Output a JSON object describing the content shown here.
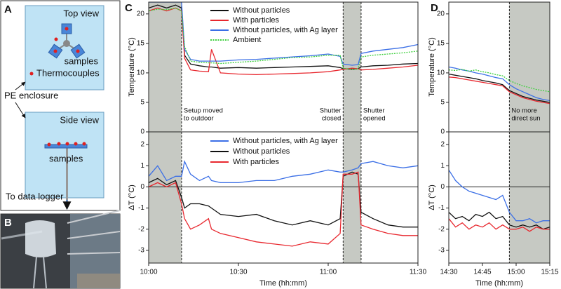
{
  "panel_labels": [
    "A",
    "B",
    "C",
    "D"
  ],
  "diagram": {
    "top_view": "Top view",
    "top_samples": "samples",
    "thermocouples": "Thermocouples",
    "enclosure": "PE enclosure",
    "side_view": "Side view",
    "side_samples": "samples",
    "logger": "To data logger"
  },
  "chart_data": [
    {
      "type": "line",
      "ylabel": "Temperature (°C)",
      "x": [
        "10:00",
        "10:03",
        "10:06",
        "10:09",
        "10:11",
        "10:12",
        "10:14",
        "10:17",
        "10:20",
        "10:21",
        "10:24",
        "10:30",
        "10:36",
        "10:42",
        "10:48",
        "10:54",
        "11:00",
        "11:04",
        "11:05",
        "11:08",
        "11:10",
        "11:11",
        "11:15",
        "11:20",
        "11:25",
        "11:30"
      ],
      "xlim": [
        "10:00",
        "11:30"
      ],
      "ylim": [
        0,
        22
      ],
      "yticks": [
        0,
        5,
        10,
        15,
        20
      ],
      "legend": "top",
      "shaded": [
        {
          "from": "10:00",
          "to": "10:11"
        },
        {
          "from": "11:05",
          "to": "11:11"
        }
      ],
      "annotations": [
        {
          "x": "10:11",
          "side": "right",
          "text": [
            "Setup moved",
            "to outdoor"
          ]
        },
        {
          "x": "11:05",
          "side": "left",
          "text": [
            "Shutter",
            "closed"
          ]
        },
        {
          "x": "11:11",
          "side": "right",
          "text": [
            "Shutter",
            "opened"
          ]
        }
      ],
      "series": [
        {
          "name": "Without particles",
          "color": "#111111",
          "values": [
            21,
            21.5,
            21,
            21.5,
            21,
            13,
            11.5,
            11.2,
            11,
            11,
            10.8,
            10.9,
            10.8,
            10.9,
            11,
            11.1,
            11.2,
            10.9,
            10.7,
            10.6,
            10.7,
            11,
            11.2,
            11.3,
            11.5,
            11.6
          ]
        },
        {
          "name": "With particles",
          "color": "#e8282f",
          "values": [
            20.5,
            21,
            20.5,
            21,
            20.5,
            12.5,
            10.5,
            10.3,
            10.2,
            14,
            10,
            9.8,
            9.7,
            9.8,
            9.9,
            10,
            10.2,
            10.5,
            10.6,
            10.8,
            10.7,
            10.5,
            10.6,
            10.8,
            11,
            11.3
          ]
        },
        {
          "name": "Without particles, with Ag layer",
          "color": "#3b6fe6",
          "values": [
            22,
            22,
            22,
            22,
            22,
            14,
            12.3,
            12,
            12,
            12,
            12,
            12.2,
            12.3,
            12.5,
            12.7,
            12.9,
            13.2,
            12.8,
            11.5,
            11.3,
            11.4,
            13.3,
            13.7,
            14,
            14.3,
            14.8
          ]
        },
        {
          "name": "Ambient",
          "color": "#3fd03f",
          "style": "dotted",
          "values": [
            20.5,
            20.8,
            20.7,
            21,
            20.5,
            14.5,
            12,
            11.8,
            11.7,
            11.7,
            11.6,
            11.8,
            12,
            12.3,
            12.6,
            12.7,
            13,
            13,
            10.8,
            10.6,
            10.7,
            12.7,
            13,
            13.2,
            13.4,
            13.7
          ]
        }
      ]
    },
    {
      "type": "line",
      "ylabel": "ΔT (°C)",
      "xlabel": "Time (hh:mm)",
      "x": [
        "10:00",
        "10:03",
        "10:06",
        "10:09",
        "10:11",
        "10:12",
        "10:14",
        "10:17",
        "10:20",
        "10:21",
        "10:24",
        "10:30",
        "10:36",
        "10:42",
        "10:48",
        "10:54",
        "11:00",
        "11:04",
        "11:05",
        "11:08",
        "11:10",
        "11:11",
        "11:15",
        "11:20",
        "11:25",
        "11:30"
      ],
      "xlim": [
        "10:00",
        "11:30"
      ],
      "xticks": [
        "10:00",
        "10:30",
        "11:00",
        "11:30"
      ],
      "ylim": [
        -3.6,
        2.6
      ],
      "yticks": [
        -3,
        -2,
        -1,
        0,
        1,
        2
      ],
      "zero_line": true,
      "legend": "top",
      "shaded": [
        {
          "from": "10:00",
          "to": "10:11"
        },
        {
          "from": "11:05",
          "to": "11:11"
        }
      ],
      "series": [
        {
          "name": "Without particles, with Ag layer",
          "color": "#3b6fe6",
          "values": [
            0.5,
            1,
            0.3,
            0.5,
            0.5,
            1.2,
            0.6,
            0.3,
            0.5,
            0.3,
            0.2,
            0.2,
            0.3,
            0.3,
            0.5,
            0.6,
            0.8,
            0.7,
            0.7,
            0.8,
            0.9,
            1.1,
            1.2,
            1,
            0.9,
            1
          ]
        },
        {
          "name": "Without particles",
          "color": "#111111",
          "values": [
            0.2,
            0.4,
            0.1,
            0.3,
            -0.5,
            -1,
            -0.8,
            -0.8,
            -0.9,
            -1,
            -1.3,
            -1.4,
            -1.3,
            -1.6,
            -1.8,
            -1.6,
            -1.8,
            -1.5,
            0.5,
            0.7,
            0.6,
            -1.2,
            -1.5,
            -1.8,
            -1.9,
            -1.9
          ]
        },
        {
          "name": "With particles",
          "color": "#e8282f",
          "values": [
            0,
            0.2,
            0,
            0.2,
            -0.8,
            -1.5,
            -2,
            -1.8,
            -1.5,
            -2,
            -2.2,
            -2.4,
            -2.6,
            -2.7,
            -2.8,
            -2.6,
            -2.7,
            -2.2,
            0.6,
            0.6,
            0.7,
            -1.8,
            -2,
            -2.2,
            -2.3,
            -2.3
          ]
        }
      ]
    },
    {
      "type": "line",
      "ylabel": "Temperature (°C)",
      "x": [
        "14:30",
        "14:33",
        "14:36",
        "14:39",
        "14:42",
        "14:45",
        "14:48",
        "14:51",
        "14:54",
        "14:57",
        "15:00",
        "15:03",
        "15:06",
        "15:09",
        "15:12",
        "15:15"
      ],
      "xlim": [
        "14:30",
        "15:15"
      ],
      "ylim": [
        0,
        22
      ],
      "yticks": [
        0,
        5,
        10,
        15,
        20
      ],
      "shaded": [
        {
          "from": "14:57",
          "to": "15:15"
        }
      ],
      "annotations": [
        {
          "x": "14:57",
          "side": "right",
          "text": [
            "No more",
            "direct sun"
          ]
        }
      ],
      "series": [
        {
          "name": "Without particles",
          "color": "#111111",
          "values": [
            9.8,
            9.6,
            9.4,
            9.2,
            9,
            8.7,
            8.5,
            8.3,
            8,
            7,
            6.5,
            6,
            5.7,
            5.4,
            5.2,
            5
          ]
        },
        {
          "name": "With particles",
          "color": "#e8282f",
          "values": [
            9.3,
            9.2,
            9,
            8.8,
            8.6,
            8.4,
            8.2,
            8,
            7.8,
            6.8,
            6.3,
            5.8,
            5.5,
            5.2,
            5,
            4.8
          ]
        },
        {
          "name": "Without particles, with Ag layer",
          "color": "#3b6fe6",
          "values": [
            11,
            10.8,
            10.5,
            10.3,
            10,
            9.8,
            9.5,
            9.2,
            9,
            8,
            7.3,
            6.8,
            6.3,
            5.8,
            5.5,
            5.3
          ]
        },
        {
          "name": "Ambient",
          "color": "#3fd03f",
          "style": "dotted",
          "values": [
            10.5,
            10.4,
            10.6,
            10.3,
            10.5,
            10.2,
            10,
            9.7,
            9.5,
            8.7,
            8.2,
            7.8,
            7.5,
            7.2,
            7,
            6.8
          ]
        }
      ]
    },
    {
      "type": "line",
      "ylabel": "ΔT (°C)",
      "xlabel": "Time (hh:mm)",
      "x": [
        "14:30",
        "14:33",
        "14:36",
        "14:39",
        "14:42",
        "14:45",
        "14:48",
        "14:51",
        "14:54",
        "14:57",
        "15:00",
        "15:03",
        "15:06",
        "15:09",
        "15:12",
        "15:15"
      ],
      "xlim": [
        "14:30",
        "15:15"
      ],
      "xticks": [
        "14:30",
        "14:45",
        "15:00",
        "15:15"
      ],
      "ylim": [
        -3.6,
        2.6
      ],
      "yticks": [
        -3,
        -2,
        -1,
        0,
        1,
        2
      ],
      "zero_line": true,
      "shaded": [
        {
          "from": "14:57",
          "to": "15:15"
        }
      ],
      "series": [
        {
          "name": "Without particles, with Ag layer",
          "color": "#3b6fe6",
          "values": [
            0.8,
            0.3,
            0,
            -0.2,
            -0.3,
            -0.4,
            -0.5,
            -0.6,
            -0.4,
            -1.2,
            -1.6,
            -1.6,
            -1.5,
            -1.7,
            -1.6,
            -1.6
          ]
        },
        {
          "name": "Without particles",
          "color": "#111111",
          "values": [
            -1.2,
            -1.5,
            -1.4,
            -1.6,
            -1.3,
            -1.4,
            -1.2,
            -1.5,
            -1.4,
            -1.8,
            -1.9,
            -1.8,
            -1.9,
            -1.8,
            -2,
            -1.9
          ]
        },
        {
          "name": "With particles",
          "color": "#e8282f",
          "values": [
            -1.5,
            -1.9,
            -1.7,
            -2,
            -1.8,
            -1.9,
            -1.7,
            -2,
            -1.8,
            -2,
            -2,
            -1.9,
            -2.1,
            -1.9,
            -2,
            -2
          ]
        }
      ]
    }
  ]
}
